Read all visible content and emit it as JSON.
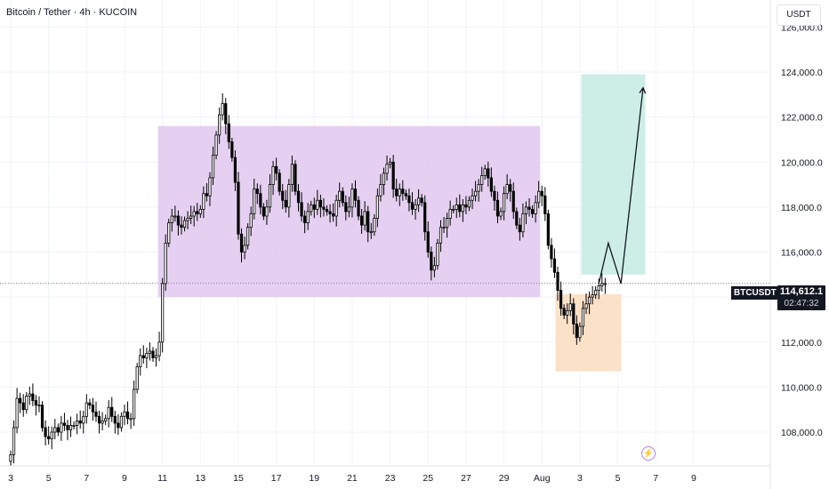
{
  "header": {
    "title": "Bitcoin / Tether · 4h · KUCOIN",
    "currency_button": "USDT"
  },
  "last_price": {
    "symbol": "BTCUSDT",
    "price": "114,612.1",
    "countdown": "02:47:32",
    "value": 114612.1
  },
  "colors": {
    "up": "#ffffff",
    "down": "#000000",
    "range_box": "#e1c8ef",
    "target_box": "#cdeee6",
    "stop_box": "#fbe1c8",
    "grid": "#f0f3fa",
    "price_line": "#787b86"
  },
  "chart_data": {
    "type": "candlestick",
    "timeframe": "4h",
    "ylim": [
      106500,
      127200
    ],
    "yticks": [
      "126,000.0",
      "124,000.0",
      "122,000.0",
      "120,000.0",
      "118,000.0",
      "116,000.0",
      "114,000.0",
      "112,000.0",
      "110,000.0",
      "108,000.0"
    ],
    "ytick_values": [
      126000,
      124000,
      122000,
      120000,
      118000,
      116000,
      114000,
      112000,
      110000,
      108000
    ],
    "xticks": [
      "3",
      "5",
      "7",
      "9",
      "11",
      "13",
      "15",
      "17",
      "19",
      "21",
      "23",
      "25",
      "27",
      "29",
      "Aug",
      "3",
      "5",
      "7",
      "9"
    ],
    "xtick_index": [
      0,
      12,
      24,
      36,
      48,
      60,
      72,
      84,
      96,
      108,
      120,
      132,
      144,
      156,
      168,
      180,
      192,
      204,
      216
    ],
    "close_path": [
      [
        0,
        107000
      ],
      [
        1,
        108200
      ],
      [
        2,
        109500
      ],
      [
        3,
        109300
      ],
      [
        4,
        109000
      ],
      [
        5,
        109600
      ],
      [
        6,
        109700
      ],
      [
        7,
        109400
      ],
      [
        8,
        109200
      ],
      [
        9,
        109200
      ],
      [
        10,
        108200
      ],
      [
        11,
        107800
      ],
      [
        12,
        107700
      ],
      [
        13,
        108000
      ],
      [
        14,
        108200
      ],
      [
        15,
        108000
      ],
      [
        16,
        108400
      ],
      [
        17,
        108300
      ],
      [
        18,
        108100
      ],
      [
        19,
        108300
      ],
      [
        20,
        108300
      ],
      [
        21,
        108500
      ],
      [
        22,
        108400
      ],
      [
        23,
        108700
      ],
      [
        24,
        109300
      ],
      [
        25,
        109200
      ],
      [
        26,
        108900
      ],
      [
        27,
        108700
      ],
      [
        28,
        108400
      ],
      [
        29,
        108500
      ],
      [
        30,
        108600
      ],
      [
        31,
        109100
      ],
      [
        32,
        108700
      ],
      [
        33,
        108400
      ],
      [
        34,
        108200
      ],
      [
        35,
        108700
      ],
      [
        36,
        108900
      ],
      [
        37,
        108600
      ],
      [
        38,
        108600
      ],
      [
        39,
        109900
      ],
      [
        40,
        110900
      ],
      [
        41,
        111400
      ],
      [
        42,
        111300
      ],
      [
        43,
        111500
      ],
      [
        44,
        111600
      ],
      [
        45,
        111300
      ],
      [
        46,
        111400
      ],
      [
        47,
        112000
      ],
      [
        48,
        114600
      ],
      [
        49,
        116400
      ],
      [
        50,
        117300
      ],
      [
        51,
        117600
      ],
      [
        52,
        117600
      ],
      [
        53,
        117200
      ],
      [
        54,
        117100
      ],
      [
        55,
        117400
      ],
      [
        56,
        117500
      ],
      [
        57,
        117600
      ],
      [
        58,
        117800
      ],
      [
        59,
        117700
      ],
      [
        60,
        117900
      ],
      [
        61,
        118600
      ],
      [
        62,
        118500
      ],
      [
        63,
        119300
      ],
      [
        64,
        120300
      ],
      [
        65,
        121200
      ],
      [
        66,
        122100
      ],
      [
        67,
        122600
      ],
      [
        68,
        121700
      ],
      [
        69,
        120900
      ],
      [
        70,
        120200
      ],
      [
        71,
        119100
      ],
      [
        72,
        116800
      ],
      [
        73,
        116000
      ],
      [
        74,
        116300
      ],
      [
        75,
        117100
      ],
      [
        76,
        117700
      ],
      [
        77,
        118800
      ],
      [
        78,
        118600
      ],
      [
        79,
        118000
      ],
      [
        80,
        117600
      ],
      [
        81,
        118000
      ],
      [
        82,
        119000
      ],
      [
        83,
        119800
      ],
      [
        84,
        119500
      ],
      [
        85,
        118700
      ],
      [
        86,
        118300
      ],
      [
        87,
        118000
      ],
      [
        88,
        119000
      ],
      [
        89,
        119900
      ],
      [
        90,
        118700
      ],
      [
        91,
        118200
      ],
      [
        92,
        117600
      ],
      [
        93,
        117300
      ],
      [
        94,
        117800
      ],
      [
        95,
        118100
      ],
      [
        96,
        117900
      ],
      [
        97,
        118300
      ],
      [
        98,
        118000
      ],
      [
        99,
        117900
      ],
      [
        100,
        117800
      ],
      [
        101,
        117700
      ],
      [
        102,
        117600
      ],
      [
        103,
        118300
      ],
      [
        104,
        118700
      ],
      [
        105,
        118200
      ],
      [
        106,
        117800
      ],
      [
        107,
        118000
      ],
      [
        108,
        118800
      ],
      [
        109,
        118300
      ],
      [
        110,
        117600
      ],
      [
        111,
        117200
      ],
      [
        112,
        117800
      ],
      [
        113,
        116900
      ],
      [
        114,
        116900
      ],
      [
        115,
        117500
      ],
      [
        116,
        118500
      ],
      [
        117,
        119000
      ],
      [
        118,
        119500
      ],
      [
        119,
        119900
      ],
      [
        120,
        120000
      ],
      [
        121,
        118800
      ],
      [
        122,
        118500
      ],
      [
        123,
        118800
      ],
      [
        124,
        118600
      ],
      [
        125,
        118500
      ],
      [
        126,
        118200
      ],
      [
        127,
        117900
      ],
      [
        128,
        118100
      ],
      [
        129,
        118400
      ],
      [
        130,
        118200
      ],
      [
        131,
        116900
      ],
      [
        132,
        116000
      ],
      [
        133,
        115200
      ],
      [
        134,
        115400
      ],
      [
        135,
        116400
      ],
      [
        136,
        117100
      ],
      [
        137,
        117100
      ],
      [
        138,
        117500
      ],
      [
        139,
        117900
      ],
      [
        140,
        117900
      ],
      [
        141,
        118100
      ],
      [
        142,
        117800
      ],
      [
        143,
        118100
      ],
      [
        144,
        118000
      ],
      [
        145,
        118300
      ],
      [
        146,
        118500
      ],
      [
        147,
        118700
      ],
      [
        148,
        119000
      ],
      [
        149,
        119400
      ],
      [
        150,
        119700
      ],
      [
        151,
        119300
      ],
      [
        152,
        118700
      ],
      [
        153,
        118300
      ],
      [
        154,
        117600
      ],
      [
        155,
        117800
      ],
      [
        156,
        118600
      ],
      [
        157,
        119000
      ],
      [
        158,
        118700
      ],
      [
        159,
        117800
      ],
      [
        160,
        117200
      ],
      [
        161,
        116900
      ],
      [
        162,
        117700
      ],
      [
        163,
        118000
      ],
      [
        164,
        117900
      ],
      [
        165,
        117700
      ],
      [
        166,
        118200
      ],
      [
        167,
        118700
      ],
      [
        168,
        118500
      ],
      [
        169,
        117700
      ],
      [
        170,
        116300
      ],
      [
        171,
        115700
      ],
      [
        172,
        115100
      ],
      [
        173,
        114300
      ],
      [
        174,
        113500
      ],
      [
        175,
        113200
      ],
      [
        176,
        113400
      ],
      [
        177,
        113700
      ],
      [
        178,
        112800
      ],
      [
        179,
        112200
      ],
      [
        180,
        112700
      ],
      [
        181,
        113500
      ],
      [
        182,
        113700
      ],
      [
        183,
        114000
      ],
      [
        184,
        114100
      ],
      [
        185,
        114300
      ],
      [
        186,
        114500
      ],
      [
        187,
        114600
      ],
      [
        188,
        114600
      ]
    ],
    "range_zone": {
      "x_start": 48,
      "x_end": 168,
      "low": 114000,
      "high": 121600
    },
    "long_position": {
      "x_start": 172,
      "x_end": 190,
      "entry": 114600,
      "target": 123900,
      "stop": 110700
    },
    "projection_path": [
      [
        186,
        114600
      ],
      [
        189,
        116400
      ],
      [
        193,
        114600
      ],
      [
        200,
        123300
      ]
    ]
  }
}
